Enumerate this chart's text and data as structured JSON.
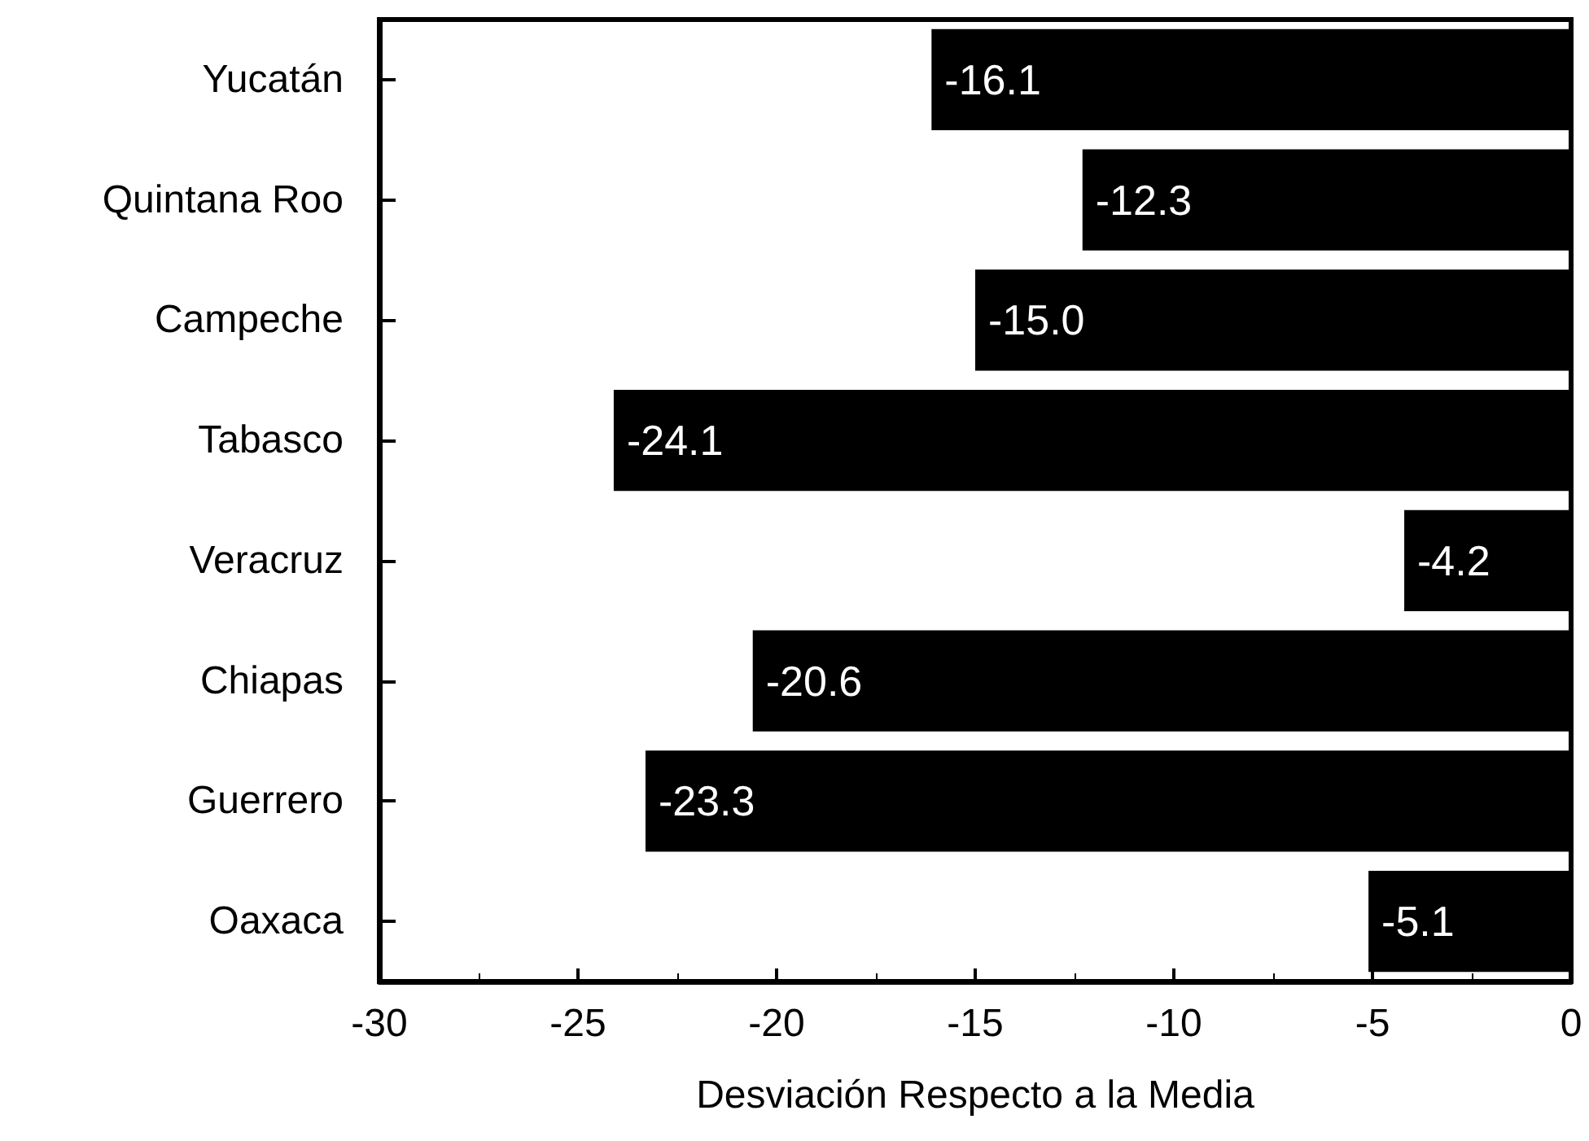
{
  "chart_data": {
    "type": "bar",
    "orientation": "horizontal",
    "xlabel": "Desviación Respecto a la Media",
    "categories": [
      "Yucatán",
      "Quintana Roo",
      "Campeche",
      "Tabasco",
      "Veracruz",
      "Chiapas",
      "Guerrero",
      "Oaxaca"
    ],
    "values": [
      -16.1,
      -12.3,
      -15.0,
      -24.1,
      -4.2,
      -20.6,
      -23.3,
      -5.1
    ],
    "value_labels": [
      "-16.1",
      "-12.3",
      "-15.0",
      "-24.1",
      "-4.2",
      "-20.6",
      "-23.3",
      "-5.1"
    ],
    "color": "#000000",
    "xlim": [
      -30,
      0
    ],
    "xticks": [
      -30,
      -25,
      -20,
      -15,
      -10,
      -5,
      0
    ]
  }
}
